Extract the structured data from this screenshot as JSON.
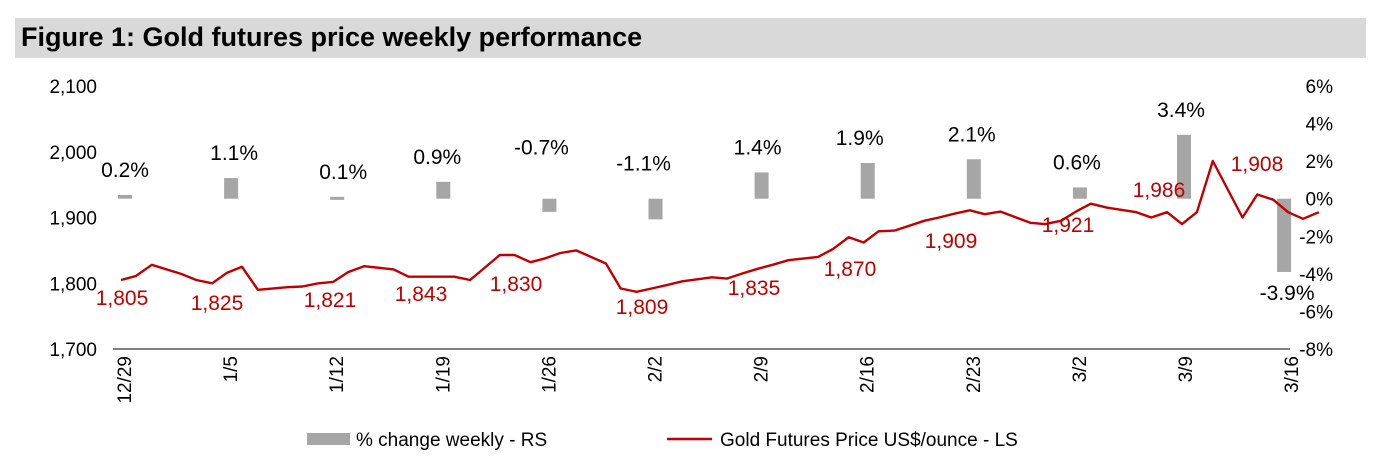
{
  "title": "Figure 1: Gold futures price weekly performance",
  "colors": {
    "bar": "#a6a6a6",
    "line": "#c00000",
    "title_bg": "#d9d9d9",
    "axis": "#000000"
  },
  "chart_data": {
    "type": "bar+line",
    "categories": [
      "12/29",
      "1/5",
      "1/12",
      "1/19",
      "1/26",
      "2/2",
      "2/9",
      "2/16",
      "2/23",
      "3/2",
      "3/9",
      "3/16"
    ],
    "left_axis": {
      "range": [
        1700,
        2100
      ],
      "ticks": [
        "1,700",
        "1,800",
        "1,900",
        "2,000",
        "2,100"
      ],
      "tick_values": [
        1700,
        1800,
        1900,
        2000,
        2100
      ]
    },
    "right_axis": {
      "range": [
        -8,
        6
      ],
      "ticks": [
        "-8%",
        "-6%",
        "-4%",
        "-2%",
        "0%",
        "2%",
        "4%",
        "6%"
      ],
      "tick_values": [
        -8,
        -6,
        -4,
        -2,
        0,
        2,
        4,
        6
      ]
    },
    "bar_series": {
      "name": "% change weekly - RS",
      "values": [
        0.2,
        1.1,
        0.1,
        0.9,
        -0.7,
        -1.1,
        1.4,
        1.9,
        2.1,
        0.6,
        3.4,
        -3.9
      ],
      "labels": [
        "0.2%",
        "1.1%",
        "0.1%",
        "0.9%",
        "-0.7%",
        "-1.1%",
        "1.4%",
        "1.9%",
        "2.1%",
        "0.6%",
        "3.4%",
        "-3.9%"
      ]
    },
    "line_series": {
      "name": "Gold Futures Price US$/ounce - LS",
      "x": [
        0,
        0.14,
        0.29,
        0.57,
        0.71,
        0.86,
        1,
        1.14,
        1.29,
        1.57,
        1.71,
        1.86,
        2,
        2.14,
        2.29,
        2.57,
        2.71,
        2.86,
        3,
        3.14,
        3.29,
        3.57,
        3.71,
        3.86,
        4,
        4.14,
        4.29,
        4.57,
        4.71,
        4.86,
        5,
        5.14,
        5.29,
        5.57,
        5.71,
        5.86,
        6,
        6.14,
        6.29,
        6.57,
        6.71,
        6.86,
        7,
        7.14,
        7.29,
        7.57,
        7.71,
        7.86,
        8,
        8.14,
        8.29,
        8.57,
        8.71,
        8.86,
        9,
        9.14,
        9.29,
        9.57,
        9.71,
        9.86,
        10,
        10.14,
        10.29,
        10.57,
        10.71,
        10.86,
        11,
        11.14,
        11.29
      ],
      "values": [
        1805,
        1811,
        1828,
        1814,
        1805,
        1800,
        1816,
        1825,
        1790,
        1794,
        1795,
        1800,
        1802,
        1817,
        1826,
        1821,
        1810,
        1810,
        1810,
        1810,
        1805,
        1843,
        1843,
        1832,
        1838,
        1846,
        1850,
        1830,
        1792,
        1787,
        1792,
        1797,
        1803,
        1809,
        1807,
        1815,
        1822,
        1828,
        1835,
        1840,
        1852,
        1870,
        1862,
        1879,
        1880,
        1895,
        1900,
        1906,
        1911,
        1905,
        1909,
        1892,
        1890,
        1895,
        1909,
        1921,
        1915,
        1908,
        1900,
        1908,
        1890,
        1908,
        1986,
        1900,
        1935,
        1927,
        1908,
        1898,
        1908
      ],
      "point_labels": [
        {
          "text": "1,805",
          "x": 0,
          "value": 1805
        },
        {
          "text": "1,825",
          "x": 1,
          "value": 1825
        },
        {
          "text": "1,821",
          "x": 2,
          "value": 1821
        },
        {
          "text": "1,843",
          "x": 3,
          "value": 1843
        },
        {
          "text": "1,830",
          "x": 4,
          "value": 1830
        },
        {
          "text": "1,809",
          "x": 5,
          "value": 1809
        },
        {
          "text": "1,835",
          "x": 6,
          "value": 1835
        },
        {
          "text": "1,870",
          "x": 7,
          "value": 1870
        },
        {
          "text": "1,909",
          "x": 8,
          "value": 1909
        },
        {
          "text": "1,921",
          "x": 9,
          "value": 1921
        },
        {
          "text": "1,986",
          "x": 10,
          "value": 1986
        },
        {
          "text": "1,908",
          "x": 11,
          "value": 1908
        }
      ]
    },
    "legend": [
      "% change weekly - RS",
      "Gold Futures Price US$/ounce - LS"
    ]
  }
}
